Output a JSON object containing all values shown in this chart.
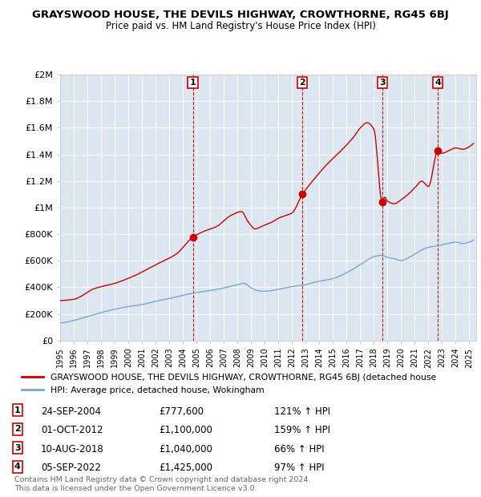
{
  "title": "GRAYSWOOD HOUSE, THE DEVILS HIGHWAY, CROWTHORNE, RG45 6BJ",
  "subtitle": "Price paid vs. HM Land Registry's House Price Index (HPI)",
  "ylim": [
    0,
    2000000
  ],
  "yticks": [
    0,
    200000,
    400000,
    600000,
    800000,
    1000000,
    1200000,
    1400000,
    1600000,
    1800000,
    2000000
  ],
  "ytick_labels": [
    "£0",
    "£200K",
    "£400K",
    "£600K",
    "£800K",
    "£1M",
    "£1.2M",
    "£1.4M",
    "£1.6M",
    "£1.8M",
    "£2M"
  ],
  "xlim_start": 1995.0,
  "xlim_end": 2025.5,
  "sale_dates": [
    2004.73,
    2012.75,
    2018.61,
    2022.68
  ],
  "sale_prices": [
    777600,
    1100000,
    1040000,
    1425000
  ],
  "sale_labels": [
    "1",
    "2",
    "3",
    "4"
  ],
  "red_line_color": "#cc0000",
  "blue_line_color": "#7ba7cc",
  "sale_dot_color": "#cc0000",
  "vline_color": "#cc0000",
  "legend_label_red": "GRAYSWOOD HOUSE, THE DEVILS HIGHWAY, CROWTHORNE, RG45 6BJ (detached house",
  "legend_label_blue": "HPI: Average price, detached house, Wokingham",
  "table_rows": [
    [
      "1",
      "24-SEP-2004",
      "£777,600",
      "121% ↑ HPI"
    ],
    [
      "2",
      "01-OCT-2012",
      "£1,100,000",
      "159% ↑ HPI"
    ],
    [
      "3",
      "10-AUG-2018",
      "£1,040,000",
      "66% ↑ HPI"
    ],
    [
      "4",
      "05-SEP-2022",
      "£1,425,000",
      "97% ↑ HPI"
    ]
  ],
  "footnote": "Contains HM Land Registry data © Crown copyright and database right 2024.\nThis data is licensed under the Open Government Licence v3.0.",
  "background_color": "#ffffff",
  "plot_bg_color": "#dce6f0",
  "red_keypoints_x": [
    1995.0,
    1996.0,
    1997.5,
    1999.0,
    2000.5,
    2002.0,
    2003.5,
    2004.73,
    2005.5,
    2006.5,
    2007.5,
    2008.3,
    2008.8,
    2009.3,
    2009.8,
    2010.5,
    2011.0,
    2011.5,
    2012.0,
    2012.75,
    2013.5,
    2014.5,
    2015.5,
    2016.5,
    2017.0,
    2017.5,
    2018.0,
    2018.61,
    2018.8,
    2019.0,
    2019.5,
    2020.0,
    2020.5,
    2021.0,
    2021.5,
    2022.0,
    2022.68,
    2023.0,
    2023.5,
    2024.0,
    2024.5,
    2025.0
  ],
  "red_keypoints_y": [
    300000,
    310000,
    390000,
    430000,
    490000,
    570000,
    650000,
    777600,
    820000,
    860000,
    940000,
    970000,
    890000,
    840000,
    860000,
    890000,
    920000,
    940000,
    960000,
    1100000,
    1200000,
    1320000,
    1420000,
    1530000,
    1600000,
    1640000,
    1590000,
    1040000,
    1080000,
    1050000,
    1030000,
    1060000,
    1100000,
    1150000,
    1200000,
    1160000,
    1425000,
    1410000,
    1430000,
    1450000,
    1440000,
    1460000
  ],
  "blue_keypoints_x": [
    1995.0,
    1996.0,
    1997.0,
    1998.0,
    1999.0,
    2000.0,
    2001.0,
    2002.0,
    2003.0,
    2004.0,
    2005.0,
    2006.0,
    2007.0,
    2008.0,
    2008.5,
    2009.0,
    2009.5,
    2010.0,
    2010.5,
    2011.0,
    2011.5,
    2012.0,
    2012.75,
    2013.0,
    2013.5,
    2014.0,
    2015.0,
    2016.0,
    2017.0,
    2017.5,
    2018.0,
    2018.5,
    2019.0,
    2019.5,
    2020.0,
    2020.5,
    2021.0,
    2021.5,
    2022.0,
    2022.5,
    2023.0,
    2023.5,
    2024.0,
    2024.5,
    2025.0
  ],
  "blue_keypoints_y": [
    130000,
    150000,
    180000,
    210000,
    235000,
    255000,
    270000,
    295000,
    315000,
    340000,
    360000,
    375000,
    395000,
    420000,
    430000,
    395000,
    375000,
    370000,
    375000,
    385000,
    395000,
    405000,
    415000,
    420000,
    435000,
    445000,
    465000,
    510000,
    570000,
    605000,
    630000,
    640000,
    625000,
    615000,
    600000,
    620000,
    650000,
    680000,
    700000,
    710000,
    720000,
    730000,
    740000,
    730000,
    740000
  ]
}
